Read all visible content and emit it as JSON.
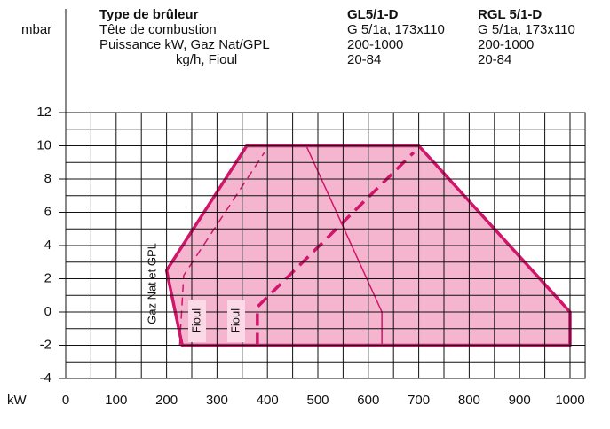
{
  "chart_data": {
    "type": "area",
    "y_axis_label": "mbar",
    "x_axis_label": "kW",
    "header": {
      "rows": [
        [
          "Type de brûleur",
          "GL5/1-D",
          "RGL 5/1-D"
        ],
        [
          "Tête de combustion",
          "G 5/1a, 173x110",
          "G 5/1a, 173x110"
        ],
        [
          "Puissance kW, Gaz Nat/GPL",
          "200-1000",
          "200-1000"
        ],
        [
          "kg/h, Fioul",
          "20-84",
          "20-84"
        ]
      ]
    },
    "annotations": [
      "Gaz Nat et GPL",
      "Fioul",
      "Fioul"
    ],
    "xlim": [
      0,
      1030
    ],
    "ylim": [
      -4,
      12
    ],
    "xticks": [
      0,
      100,
      200,
      300,
      400,
      500,
      600,
      700,
      800,
      900,
      1000
    ],
    "yticks": [
      -4,
      -2,
      0,
      2,
      4,
      6,
      8,
      10,
      12
    ],
    "x_minor_grid": [
      50,
      150,
      250,
      350,
      450,
      550,
      650,
      750,
      850,
      950
    ],
    "y_minor_grid": [
      -3,
      -1,
      1,
      3,
      5,
      7,
      9,
      11
    ],
    "grid": true,
    "series": [
      {
        "x": [
          200,
          359,
          700,
          1000,
          1000,
          231
        ],
        "values": [
          2.5,
          10,
          10,
          0,
          -2,
          -2
        ],
        "color": "#d1156a",
        "fill": "#f5b5cf",
        "line_style": "solid",
        "line_width": 3.5,
        "closed": true
      },
      {
        "x": [
          226,
          234,
          394
        ],
        "values": [
          -2,
          2.2,
          9.6
        ],
        "color": "#d1156a",
        "line_style": "dashed",
        "line_width": 1.5,
        "closed": false
      },
      {
        "x": [
          477,
          627,
          627
        ],
        "values": [
          10,
          0,
          -2
        ],
        "color": "#d1156a",
        "line_style": "solid",
        "line_width": 1.5,
        "closed": false
      },
      {
        "x": [
          380,
          380,
          690
        ],
        "values": [
          -2,
          0.3,
          9.6
        ],
        "color": "#d1156a",
        "line_style": "dashed",
        "line_width": 3.5,
        "closed": false
      }
    ]
  }
}
